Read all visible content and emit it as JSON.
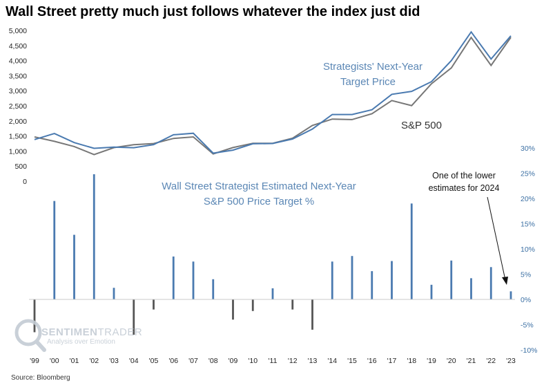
{
  "title": "Wall Street pretty much just follows whatever the index just did",
  "source": "Source: Bloomberg",
  "watermark": {
    "brand_left": "SENTIMEN",
    "brand_right": "TRADER",
    "tagline": "Analysis over Emotion"
  },
  "colors": {
    "blue": "#4a7ab0",
    "gray": "#777777",
    "dark_bar": "#555555",
    "annotation_blue": "#5b87b5"
  },
  "chart_data": [
    {
      "type": "line",
      "x": [
        "'99",
        "'00",
        "'01",
        "'02",
        "'03",
        "'04",
        "'05",
        "'06",
        "'07",
        "'08",
        "'09",
        "'10",
        "'11",
        "'12",
        "'13",
        "'14",
        "'15",
        "'16",
        "'17",
        "'18",
        "'19",
        "'20",
        "'21",
        "'22",
        "'23"
      ],
      "series": [
        {
          "name": "Strategists' Next-Year Target Price",
          "values": [
            1380,
            1580,
            1280,
            1090,
            1130,
            1110,
            1210,
            1540,
            1590,
            930,
            1030,
            1240,
            1250,
            1400,
            1730,
            2210,
            2210,
            2370,
            2880,
            2980,
            3300,
            4000,
            4950,
            4050,
            4820
          ]
        },
        {
          "name": "S&P 500",
          "values": [
            1469,
            1320,
            1148,
            880,
            1112,
            1212,
            1248,
            1418,
            1468,
            903,
            1115,
            1258,
            1258,
            1426,
            1848,
            2059,
            2044,
            2239,
            2674,
            2507,
            3231,
            3756,
            4766,
            3840,
            4770
          ]
        }
      ],
      "y_ticks": [
        "5,000",
        "4,500",
        "4,000",
        "3,500",
        "3,000",
        "2,500",
        "2,000",
        "1,500",
        "1,000",
        "500",
        "0"
      ],
      "ylim": [
        0,
        5000
      ],
      "annotations": {
        "target_label_line1": "Strategists' Next-Year",
        "target_label_line2": "Target Price",
        "sp500_label": "S&P 500"
      }
    },
    {
      "type": "bar",
      "categories": [
        "'99",
        "'00",
        "'01",
        "'02",
        "'03",
        "'04",
        "'05",
        "'06",
        "'07",
        "'08",
        "'09",
        "'10",
        "'11",
        "'12",
        "'13",
        "'14",
        "'15",
        "'16",
        "'17",
        "'18",
        "'19",
        "'20",
        "'21",
        "'22",
        "'23"
      ],
      "values": [
        -6.5,
        19.5,
        12.8,
        24.8,
        2.3,
        -7.0,
        -2.0,
        8.5,
        7.5,
        4.0,
        -4.0,
        -2.3,
        2.2,
        -2.0,
        -6.0,
        7.5,
        8.6,
        5.6,
        7.6,
        19.0,
        2.9,
        7.7,
        4.2,
        6.4,
        1.6
      ],
      "y_ticks": [
        "30%",
        "25%",
        "20%",
        "15%",
        "10%",
        "5%",
        "0%",
        "-5%",
        "-10%"
      ],
      "ylim": [
        -10,
        30
      ],
      "annotations": {
        "title_line1": "Wall Street Strategist Estimated Next-Year",
        "title_line2": "S&P 500 Price Target %",
        "note_line1": "One of the lower",
        "note_line2": "estimates for 2024"
      }
    }
  ]
}
